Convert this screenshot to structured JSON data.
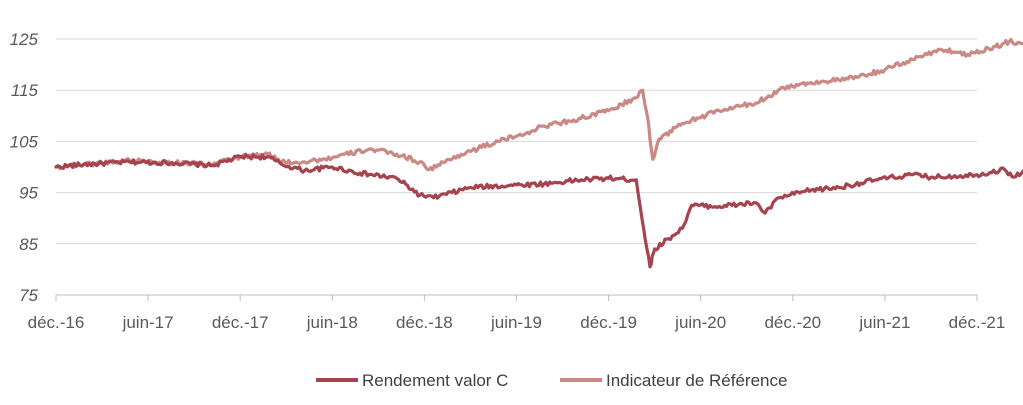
{
  "chart_data": {
    "type": "line",
    "title": "",
    "xlabel": "",
    "ylabel": "",
    "ylim": [
      75,
      125
    ],
    "yticks": [
      "125",
      "115",
      "105",
      "95",
      "85",
      "75"
    ],
    "ytick_values": [
      125,
      115,
      105,
      95,
      85,
      75
    ],
    "x_categories": [
      "déc.-16",
      "juin-17",
      "déc.-17",
      "juin-18",
      "déc.-18",
      "juin-19",
      "déc.-19",
      "juin-20",
      "déc.-20",
      "juin-21",
      "déc.-21"
    ],
    "grid": "horizontal",
    "legend": "bottom-center",
    "series": [
      {
        "name": "Rendement valor C",
        "color": "#A5444F",
        "points": [
          [
            0,
            100.0
          ],
          [
            0.3,
            100.5
          ],
          [
            0.8,
            101.0
          ],
          [
            1.3,
            100.8
          ],
          [
            1.7,
            100.3
          ],
          [
            2.0,
            102.0
          ],
          [
            2.3,
            102.0
          ],
          [
            2.45,
            100.5
          ],
          [
            2.7,
            99.3
          ],
          [
            3.0,
            100.0
          ],
          [
            3.3,
            98.8
          ],
          [
            3.7,
            97.8
          ],
          [
            3.95,
            94.5
          ],
          [
            4.1,
            94.0
          ],
          [
            4.5,
            96.0
          ],
          [
            5.0,
            96.5
          ],
          [
            5.3,
            96.7
          ],
          [
            5.7,
            97.5
          ],
          [
            6.0,
            97.8
          ],
          [
            6.3,
            97.5
          ],
          [
            6.38,
            88.0
          ],
          [
            6.45,
            80.5
          ],
          [
            6.5,
            84.0
          ],
          [
            6.65,
            86.0
          ],
          [
            6.8,
            88.0
          ],
          [
            6.9,
            92.5
          ],
          [
            7.2,
            92.3
          ],
          [
            7.6,
            93.0
          ],
          [
            7.7,
            91.0
          ],
          [
            7.85,
            94.0
          ],
          [
            8.2,
            95.5
          ],
          [
            8.5,
            96.0
          ],
          [
            8.9,
            97.5
          ],
          [
            9.3,
            98.5
          ],
          [
            9.5,
            98.0
          ],
          [
            10.0,
            98.5
          ],
          [
            10.3,
            99.5
          ],
          [
            10.4,
            98.0
          ],
          [
            10.5,
            99.2
          ]
        ]
      },
      {
        "name": "Indicateur de Référence",
        "color": "#C98A86",
        "points": [
          [
            0,
            100.0
          ],
          [
            0.3,
            100.5
          ],
          [
            0.8,
            101.3
          ],
          [
            1.3,
            100.8
          ],
          [
            1.7,
            100.5
          ],
          [
            2.0,
            102.0
          ],
          [
            2.3,
            102.5
          ],
          [
            2.45,
            101.0
          ],
          [
            2.7,
            101.0
          ],
          [
            3.0,
            101.8
          ],
          [
            3.4,
            103.5
          ],
          [
            3.7,
            102.5
          ],
          [
            3.95,
            101.0
          ],
          [
            4.05,
            99.5
          ],
          [
            4.4,
            102.5
          ],
          [
            4.8,
            105.0
          ],
          [
            5.0,
            106.0
          ],
          [
            5.3,
            108.0
          ],
          [
            5.7,
            109.5
          ],
          [
            6.0,
            111.0
          ],
          [
            6.3,
            113.5
          ],
          [
            6.37,
            115.0
          ],
          [
            6.42,
            110.0
          ],
          [
            6.48,
            101.5
          ],
          [
            6.55,
            105.5
          ],
          [
            6.8,
            108.5
          ],
          [
            7.2,
            111.0
          ],
          [
            7.6,
            112.5
          ],
          [
            7.9,
            115.5
          ],
          [
            8.2,
            116.5
          ],
          [
            8.5,
            117.0
          ],
          [
            8.7,
            117.5
          ],
          [
            9.0,
            119.0
          ],
          [
            9.3,
            121.0
          ],
          [
            9.6,
            123.0
          ],
          [
            9.9,
            122.0
          ],
          [
            10.2,
            123.5
          ],
          [
            10.35,
            124.5
          ],
          [
            10.5,
            124.2
          ]
        ]
      }
    ]
  }
}
